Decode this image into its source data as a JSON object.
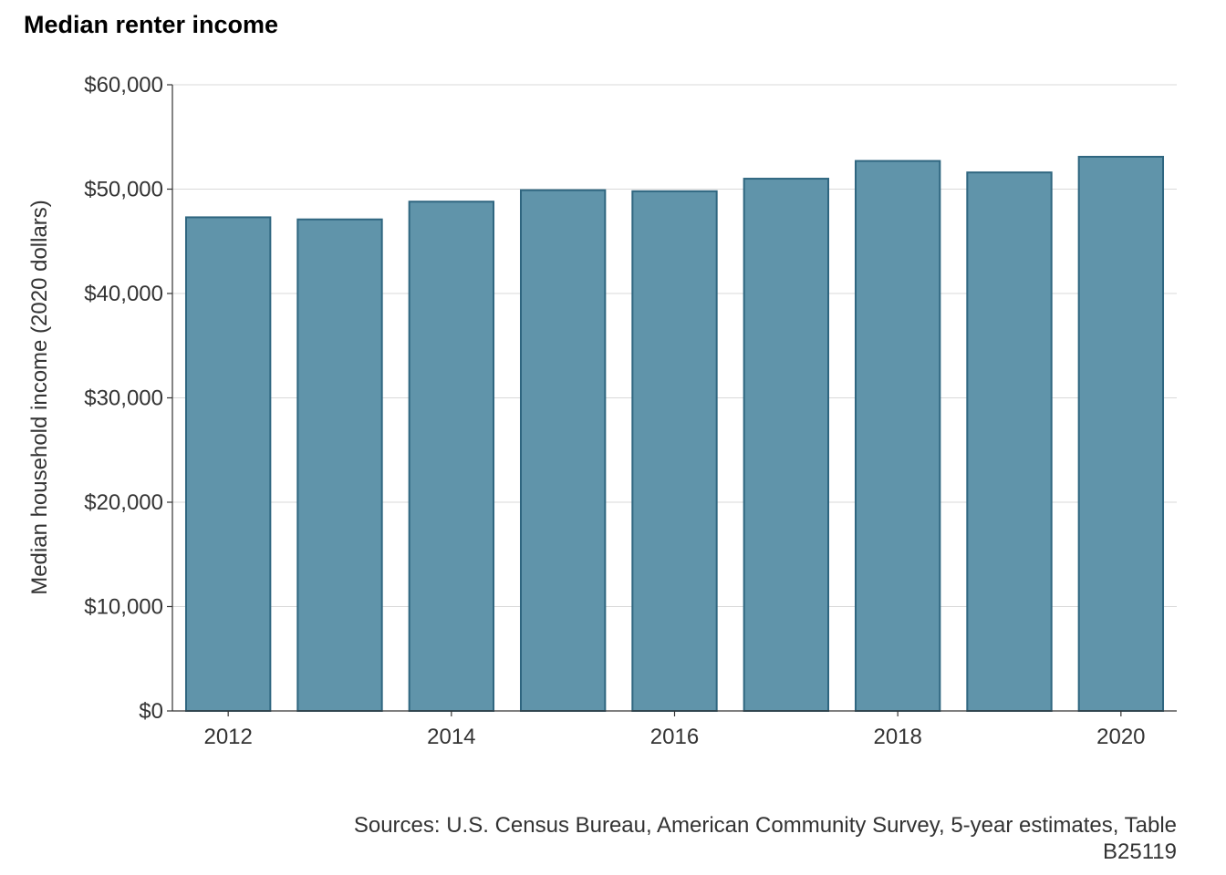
{
  "chart_data": {
    "type": "bar",
    "title": "Median renter income",
    "xlabel": "",
    "ylabel": "Median household income (2020 dollars)",
    "categories": [
      "2012",
      "2013",
      "2014",
      "2015",
      "2016",
      "2017",
      "2018",
      "2019",
      "2020"
    ],
    "values": [
      47300,
      47100,
      48800,
      49900,
      49800,
      51000,
      52700,
      51600,
      53100
    ],
    "ylim": [
      0,
      60000
    ],
    "y_ticks": [
      0,
      10000,
      20000,
      30000,
      40000,
      50000,
      60000
    ],
    "y_tick_labels": [
      "$0",
      "$10,000",
      "$20,000",
      "$30,000",
      "$40,000",
      "$50,000",
      "$60,000"
    ],
    "x_tick_labels": [
      "2012",
      "2014",
      "2016",
      "2018",
      "2020"
    ],
    "grid": "horizontal",
    "legend": "none",
    "bar_fill": "#6094aa",
    "bar_stroke": "#2f6680",
    "caption_lines": [
      "Sources: U.S. Census Bureau, American Community Survey, 5-year estimates, Table",
      "B25119"
    ]
  }
}
